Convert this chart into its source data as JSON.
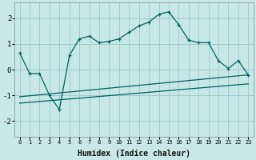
{
  "xlabel": "Humidex (Indice chaleur)",
  "xlim": [
    -0.5,
    23.5
  ],
  "ylim": [
    -2.6,
    2.6
  ],
  "yticks": [
    -2,
    -1,
    0,
    1,
    2
  ],
  "xticks": [
    0,
    1,
    2,
    3,
    4,
    5,
    6,
    7,
    8,
    9,
    10,
    11,
    12,
    13,
    14,
    15,
    16,
    17,
    18,
    19,
    20,
    21,
    22,
    23
  ],
  "background_color": "#c8e8e8",
  "grid_color": "#a0cccc",
  "line_color": "#006060",
  "line1_x": [
    0,
    1,
    2,
    3,
    4,
    5,
    6,
    7,
    8,
    9,
    10,
    11,
    12,
    13,
    14,
    15,
    16,
    17,
    18,
    19,
    20,
    21,
    22,
    23
  ],
  "line1_y": [
    0.65,
    -0.15,
    -0.15,
    -1.0,
    -1.55,
    0.55,
    1.2,
    1.3,
    1.05,
    1.1,
    1.2,
    1.45,
    1.7,
    1.85,
    2.15,
    2.25,
    1.75,
    1.15,
    1.05,
    1.05,
    0.35,
    0.05,
    0.35,
    -0.2
  ],
  "line2_x": [
    0,
    23
  ],
  "line2_y": [
    -1.05,
    -0.2
  ],
  "line3_x": [
    0,
    23
  ],
  "line3_y": [
    -1.3,
    -0.55
  ],
  "xlabel_fontsize": 7,
  "tick_fontsize": 6
}
